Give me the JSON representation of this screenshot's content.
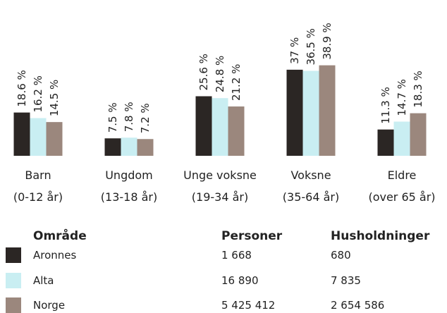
{
  "chart_data": {
    "type": "bar",
    "categories": [
      [
        "Barn",
        "(0-12 år)"
      ],
      [
        "Ungdom",
        "(13-18 år)"
      ],
      [
        "Unge voksne",
        "(19-34 år)"
      ],
      [
        "Voksne",
        "(35-64 år)"
      ],
      [
        "Eldre",
        "(over 65 år)"
      ]
    ],
    "ylim": [
      0,
      40
    ],
    "series": [
      {
        "name": "Aronnes",
        "color": "#2b2624",
        "values": [
          18.6,
          7.5,
          25.6,
          37,
          11.3
        ],
        "value_labels": [
          "18.6 %",
          "7.5 %",
          "25.6 %",
          "37 %",
          "11.3 %"
        ]
      },
      {
        "name": "Alta",
        "color": "#c9eef2",
        "values": [
          16.2,
          7.8,
          24.8,
          36.5,
          14.7
        ],
        "value_labels": [
          "16.2 %",
          "7.8 %",
          "24.8 %",
          "36.5 %",
          "14.7 %"
        ]
      },
      {
        "name": "Norge",
        "color": "#9b877d",
        "values": [
          14.5,
          7.2,
          21.2,
          38.9,
          18.3
        ],
        "value_labels": [
          "14.5 %",
          "7.2 %",
          "21.2 %",
          "38.9 %",
          "18.3 %"
        ]
      }
    ],
    "legend_table": {
      "columns": [
        "Område",
        "Personer",
        "Husholdninger"
      ],
      "rows": [
        [
          "1 668",
          "680"
        ],
        [
          "16 890",
          "7 835"
        ],
        [
          "5 425 412",
          "2 654 586"
        ]
      ]
    }
  }
}
